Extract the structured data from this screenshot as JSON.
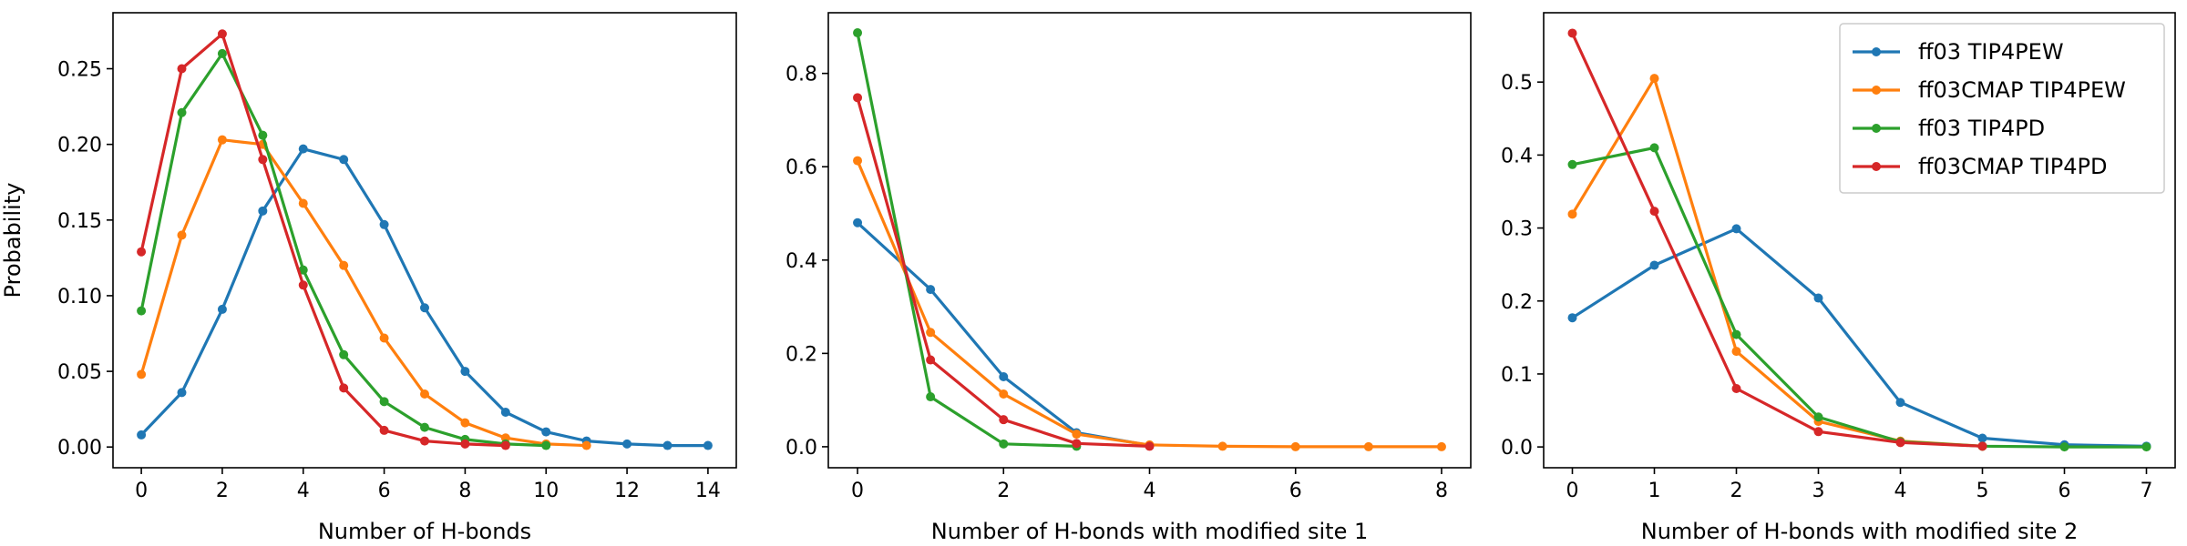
{
  "colors": {
    "ff03_TIP4PEW": "#1f77b4",
    "ff03CMAP_TIP4PEW": "#ff7f0e",
    "ff03_TIP4PD": "#2ca02c",
    "ff03CMAP_TIP4PD": "#d62728"
  },
  "chart_data": [
    {
      "type": "line",
      "title": "",
      "xlabel": "Number of H-bonds",
      "ylabel": "Probability",
      "xlim": [
        -0.7,
        14.7
      ],
      "ylim": [
        -0.0137,
        0.287
      ],
      "xticks": [
        0,
        2,
        4,
        6,
        8,
        10,
        12,
        14
      ],
      "yticks": [
        0.0,
        0.05,
        0.1,
        0.15,
        0.2,
        0.25
      ],
      "ytick_labels": [
        "0.00",
        "0.05",
        "0.10",
        "0.15",
        "0.20",
        "0.25"
      ],
      "grid": false,
      "legend": false,
      "series": [
        {
          "name": "ff03 TIP4PEW",
          "color": "#1f77b4",
          "x": [
            0,
            1,
            2,
            3,
            4,
            5,
            6,
            7,
            8,
            9,
            10,
            11,
            12,
            13,
            14
          ],
          "y": [
            0.008,
            0.036,
            0.091,
            0.156,
            0.197,
            0.19,
            0.147,
            0.092,
            0.05,
            0.023,
            0.01,
            0.004,
            0.002,
            0.001,
            0.001
          ]
        },
        {
          "name": "ff03CMAP TIP4PEW",
          "color": "#ff7f0e",
          "x": [
            0,
            1,
            2,
            3,
            4,
            5,
            6,
            7,
            8,
            9,
            10,
            11
          ],
          "y": [
            0.048,
            0.14,
            0.203,
            0.2,
            0.161,
            0.12,
            0.072,
            0.035,
            0.016,
            0.006,
            0.002,
            0.001
          ]
        },
        {
          "name": "ff03 TIP4PD",
          "color": "#2ca02c",
          "x": [
            0,
            1,
            2,
            3,
            4,
            5,
            6,
            7,
            8,
            9,
            10
          ],
          "y": [
            0.09,
            0.221,
            0.26,
            0.206,
            0.117,
            0.061,
            0.03,
            0.013,
            0.005,
            0.002,
            0.001
          ]
        },
        {
          "name": "ff03CMAP TIP4PD",
          "color": "#d62728",
          "x": [
            0,
            1,
            2,
            3,
            4,
            5,
            6,
            7,
            8,
            9
          ],
          "y": [
            0.129,
            0.25,
            0.273,
            0.19,
            0.107,
            0.039,
            0.011,
            0.004,
            0.002,
            0.001
          ]
        }
      ]
    },
    {
      "type": "line",
      "title": "",
      "xlabel": "Number of H-bonds with modified site 1",
      "ylabel": "",
      "xlim": [
        -0.4,
        8.4
      ],
      "ylim": [
        -0.045,
        0.93
      ],
      "xticks": [
        0,
        2,
        4,
        6,
        8
      ],
      "yticks": [
        0.0,
        0.2,
        0.4,
        0.6,
        0.8
      ],
      "ytick_labels": [
        "0.0",
        "0.2",
        "0.4",
        "0.6",
        "0.8"
      ],
      "grid": false,
      "legend": false,
      "series": [
        {
          "name": "ff03 TIP4PEW",
          "color": "#1f77b4",
          "x": [
            0,
            1,
            2,
            3,
            4
          ],
          "y": [
            0.48,
            0.337,
            0.15,
            0.03,
            0.003
          ]
        },
        {
          "name": "ff03CMAP TIP4PEW",
          "color": "#ff7f0e",
          "x": [
            0,
            1,
            2,
            3,
            4,
            5,
            6,
            7,
            8
          ],
          "y": [
            0.613,
            0.245,
            0.113,
            0.027,
            0.004,
            0.001,
            0.0,
            0.0,
            0.0
          ]
        },
        {
          "name": "ff03 TIP4PD",
          "color": "#2ca02c",
          "x": [
            0,
            1,
            2,
            3
          ],
          "y": [
            0.887,
            0.107,
            0.006,
            0.001
          ]
        },
        {
          "name": "ff03CMAP TIP4PD",
          "color": "#d62728",
          "x": [
            0,
            1,
            2,
            3,
            4
          ],
          "y": [
            0.748,
            0.186,
            0.058,
            0.007,
            0.001
          ]
        }
      ]
    },
    {
      "type": "line",
      "title": "",
      "xlabel": "Number of H-bonds with modified site 2",
      "ylabel": "",
      "xlim": [
        -0.35,
        7.35
      ],
      "ylim": [
        -0.0285,
        0.595
      ],
      "xticks": [
        0,
        1,
        2,
        3,
        4,
        5,
        6,
        7
      ],
      "yticks": [
        0.0,
        0.1,
        0.2,
        0.3,
        0.4,
        0.5
      ],
      "ytick_labels": [
        "0.0",
        "0.1",
        "0.2",
        "0.3",
        "0.4",
        "0.5"
      ],
      "grid": false,
      "legend": true,
      "legend_position": "top-right",
      "series": [
        {
          "name": "ff03 TIP4PEW",
          "color": "#1f77b4",
          "x": [
            0,
            1,
            2,
            3,
            4,
            5,
            6,
            7
          ],
          "y": [
            0.177,
            0.249,
            0.299,
            0.204,
            0.061,
            0.012,
            0.003,
            0.001
          ]
        },
        {
          "name": "ff03CMAP TIP4PEW",
          "color": "#ff7f0e",
          "x": [
            0,
            1,
            2,
            3,
            4,
            5
          ],
          "y": [
            0.319,
            0.505,
            0.131,
            0.035,
            0.008,
            0.001
          ]
        },
        {
          "name": "ff03 TIP4PD",
          "color": "#2ca02c",
          "x": [
            0,
            1,
            2,
            3,
            4,
            5,
            6,
            7
          ],
          "y": [
            0.387,
            0.41,
            0.154,
            0.041,
            0.007,
            0.001,
            0.0,
            0.0
          ]
        },
        {
          "name": "ff03CMAP TIP4PD",
          "color": "#d62728",
          "x": [
            0,
            1,
            2,
            3,
            4,
            5
          ],
          "y": [
            0.567,
            0.323,
            0.08,
            0.021,
            0.006,
            0.001
          ]
        }
      ]
    }
  ]
}
